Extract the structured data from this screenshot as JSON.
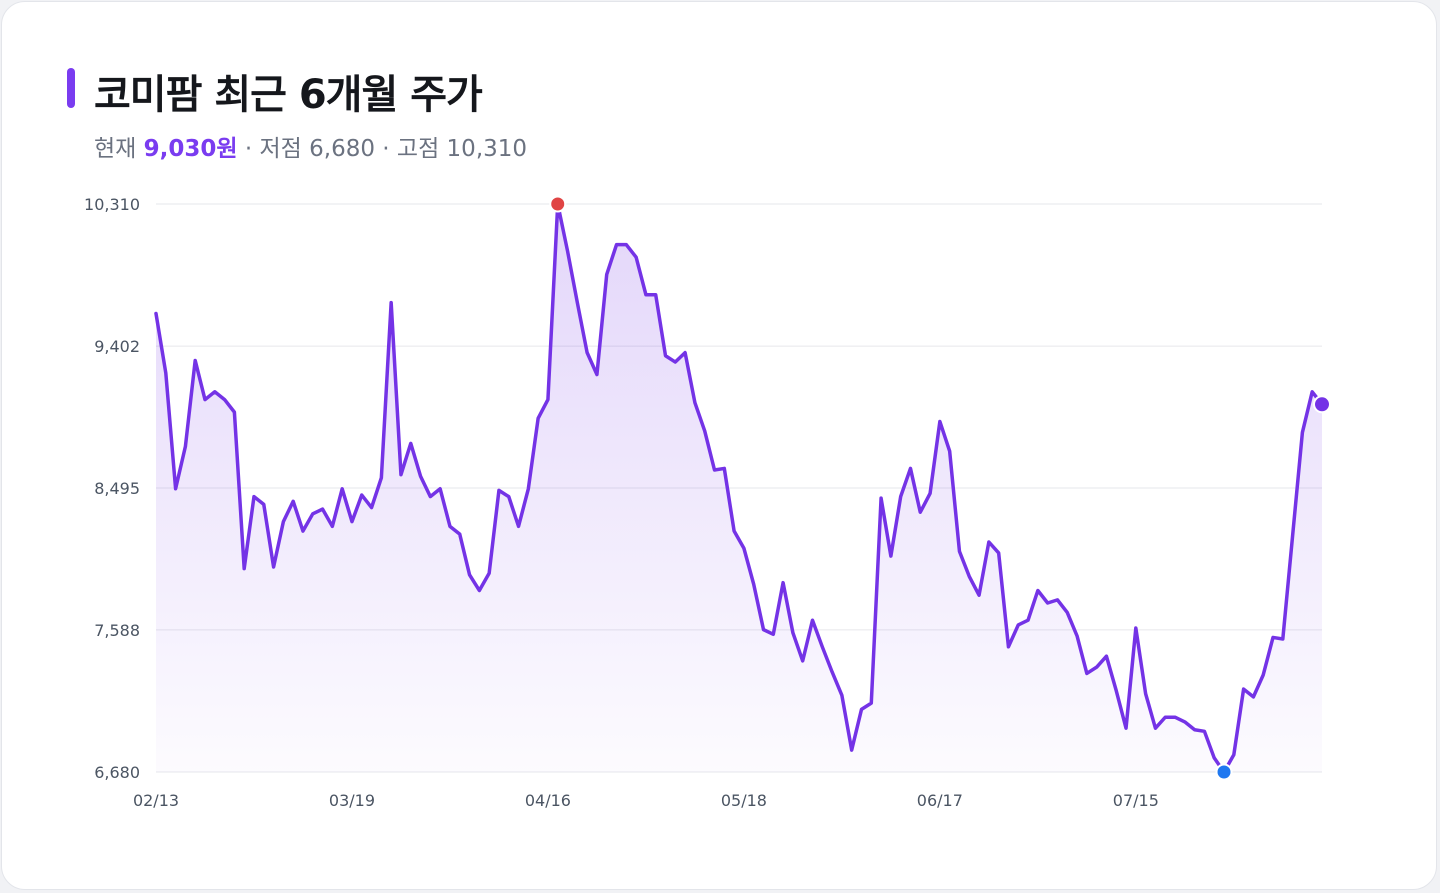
{
  "header": {
    "title": "코미팜 최근 6개월 주가",
    "current_label": "현재",
    "current_value": "9,030원",
    "low_text": " · 저점 6,680",
    "high_text": " · 고점 10,310"
  },
  "colors": {
    "accent": "#7a3cf0",
    "line": "#7433e6",
    "high_marker": "#e04444",
    "low_marker": "#1f78f0",
    "grid": "#e6e7eb"
  },
  "chart_data": {
    "type": "area",
    "ylim": [
      6680,
      10310
    ],
    "yticks": [
      "6,680",
      "7,588",
      "8,495",
      "9,402",
      "10,310"
    ],
    "ytick_values": [
      6680,
      7588,
      8495,
      9402,
      10310
    ],
    "xticks": [
      "02/13",
      "03/19",
      "04/16",
      "05/18",
      "06/17",
      "07/15"
    ],
    "xtick_index": [
      0,
      20,
      40,
      60,
      80,
      100
    ],
    "grid": true,
    "values": [
      9610,
      9230,
      8490,
      8760,
      9310,
      9060,
      9110,
      9060,
      8980,
      7980,
      8440,
      8390,
      7990,
      8280,
      8410,
      8220,
      8330,
      8360,
      8250,
      8490,
      8280,
      8450,
      8370,
      8560,
      9680,
      8580,
      8780,
      8570,
      8440,
      8490,
      8250,
      8200,
      7940,
      7840,
      7950,
      8480,
      8440,
      8250,
      8490,
      8940,
      9060,
      10310,
      10010,
      9680,
      9360,
      9220,
      9860,
      10050,
      10050,
      9970,
      9730,
      9730,
      9340,
      9300,
      9360,
      9040,
      8860,
      8610,
      8620,
      8220,
      8110,
      7880,
      7590,
      7560,
      7890,
      7570,
      7390,
      7650,
      7480,
      7320,
      7170,
      6820,
      7080,
      7120,
      8430,
      8060,
      8440,
      8620,
      8340,
      8460,
      8920,
      8730,
      8090,
      7930,
      7810,
      8150,
      8080,
      7480,
      7620,
      7650,
      7840,
      7760,
      7780,
      7700,
      7550,
      7310,
      7350,
      7420,
      7200,
      6960,
      7600,
      7180,
      6960,
      7030,
      7030,
      7000,
      6950,
      6940,
      6770,
      6680,
      6790,
      7210,
      7160,
      7300,
      7540,
      7530,
      8190,
      8850,
      9110,
      9030
    ],
    "high": {
      "index": 41,
      "value": 10310
    },
    "low": {
      "index": 109,
      "value": 6680
    },
    "last": {
      "index": 119,
      "value": 9030
    }
  }
}
